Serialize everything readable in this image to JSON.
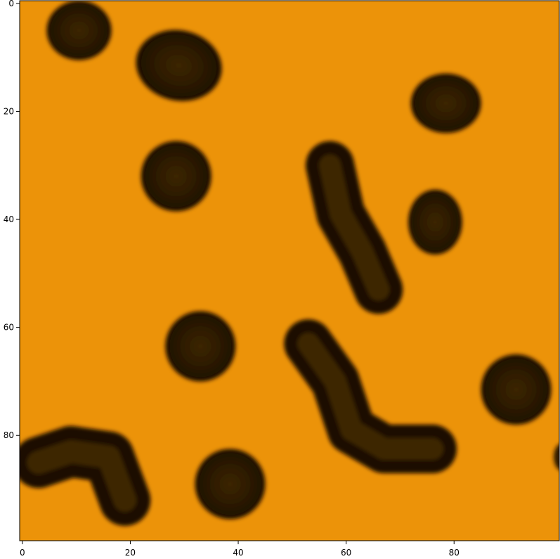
{
  "colors": {
    "background": "#ec9309",
    "blob_edge": "#1a0e02",
    "blob_core": "#3c2603",
    "axis": "#000000"
  },
  "axes": {
    "x_ticks": [
      "0",
      "20",
      "40",
      "60",
      "80"
    ],
    "y_ticks": [
      "0",
      "20",
      "40",
      "60",
      "80"
    ],
    "x_range": [
      -0.5,
      99.5
    ],
    "y_range": [
      -0.5,
      99.5
    ]
  },
  "blobs": [
    {
      "name": "blob-top-left",
      "cx": 10.5,
      "cy": 5,
      "rx": 6,
      "ry": 5.5,
      "angle": 0
    },
    {
      "name": "blob-top-oval",
      "cx": 29,
      "cy": 11.5,
      "rx": 8,
      "ry": 6.5,
      "angle": 12
    },
    {
      "name": "blob-right-upper",
      "cx": 78.5,
      "cy": 18.5,
      "rx": 6.5,
      "ry": 5.5,
      "angle": 0
    },
    {
      "name": "blob-left-mid",
      "cx": 28.5,
      "cy": 32,
      "rx": 6.5,
      "ry": 6.5,
      "angle": 0
    },
    {
      "name": "blob-right-mid",
      "cx": 76.5,
      "cy": 40.5,
      "rx": 5,
      "ry": 6,
      "angle": 0
    },
    {
      "name": "blob-center",
      "cx": 33,
      "cy": 63.5,
      "rx": 6.5,
      "ry": 6.5,
      "angle": 0
    },
    {
      "name": "blob-right-lower",
      "cx": 91.5,
      "cy": 71.5,
      "rx": 6.5,
      "ry": 6.5,
      "angle": 0
    },
    {
      "name": "blob-bottom-center",
      "cx": 38.5,
      "cy": 89,
      "rx": 6.5,
      "ry": 6.5,
      "angle": 0
    },
    {
      "name": "blob-right-edge",
      "cx": 100,
      "cy": 84,
      "rx": 1.5,
      "ry": 2.5,
      "angle": 0
    }
  ],
  "worms": [
    {
      "name": "worm-upper-middle",
      "points": [
        [
          57,
          30
        ],
        [
          59,
          39
        ],
        [
          63,
          46
        ],
        [
          66,
          53
        ]
      ],
      "thickness": 9
    },
    {
      "name": "worm-lower-middle",
      "points": [
        [
          53,
          63
        ],
        [
          58,
          70
        ],
        [
          61,
          79
        ],
        [
          67,
          82.5
        ],
        [
          76,
          82.5
        ]
      ],
      "thickness": 9
    },
    {
      "name": "worm-bottom-left",
      "points": [
        [
          3,
          85
        ],
        [
          9,
          83
        ],
        [
          16,
          84
        ],
        [
          19,
          92
        ]
      ],
      "thickness": 9.5
    }
  ]
}
